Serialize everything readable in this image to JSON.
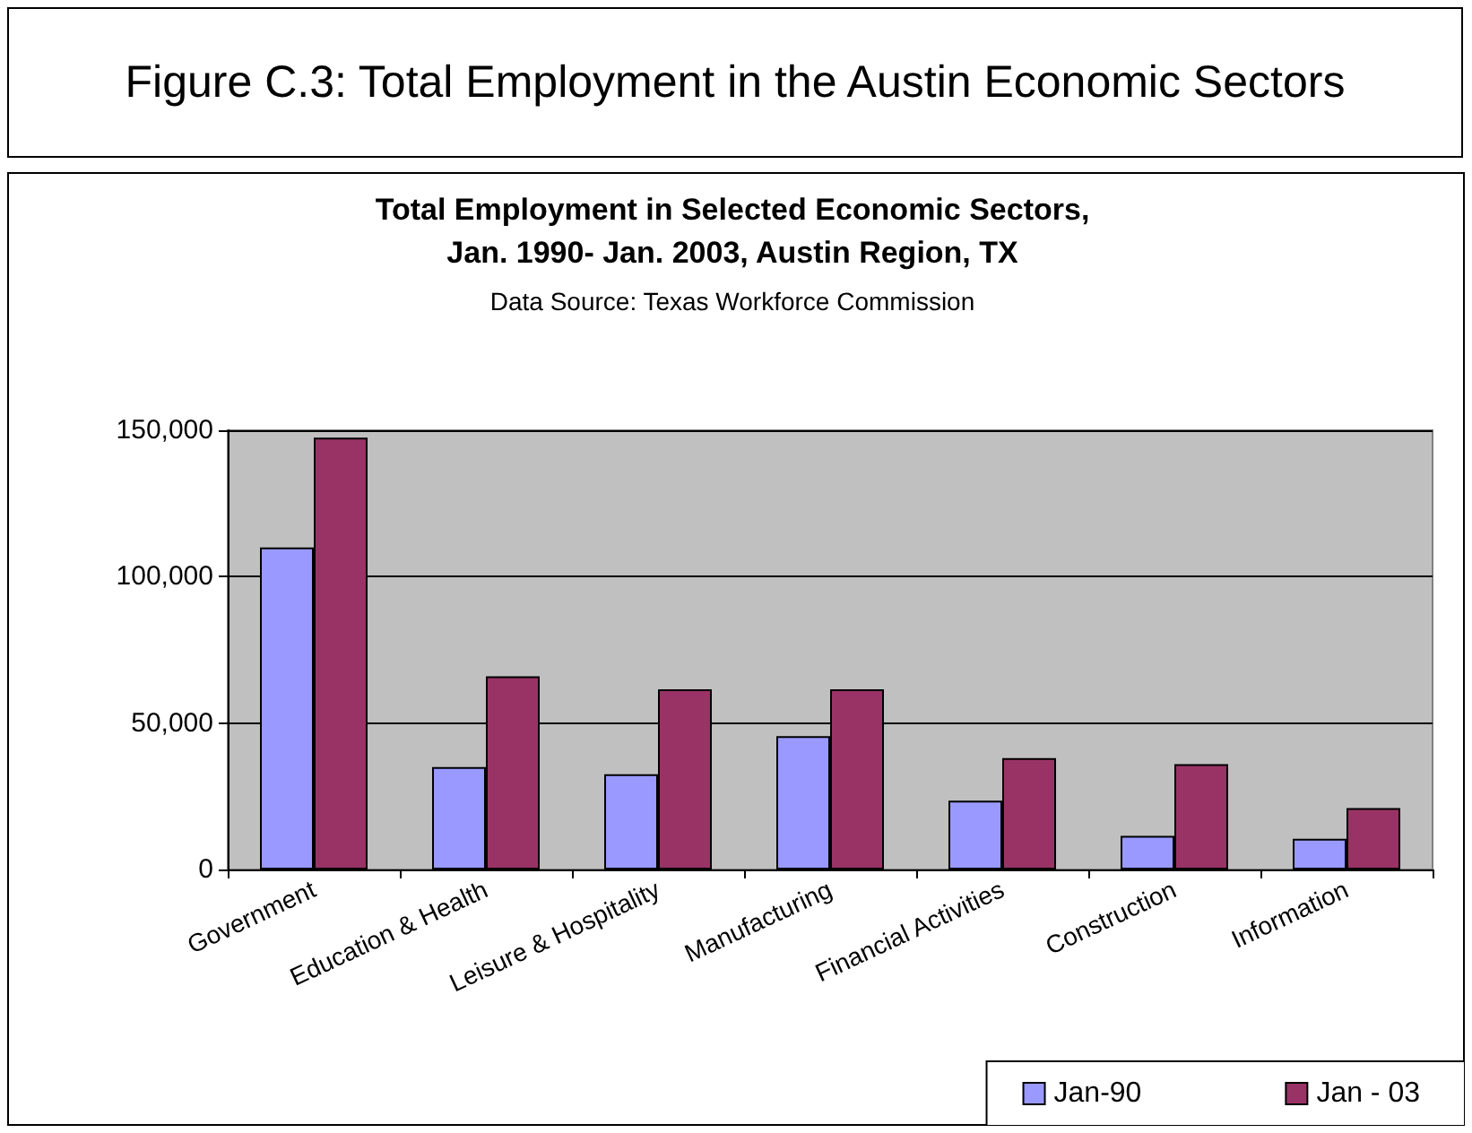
{
  "chart_data": {
    "type": "bar",
    "title": "Total Employment in Selected Economic Sectors,\nJan. 1990- Jan. 2003, Austin Region, TX",
    "subtitle": "Data Source: Texas Workforce Commission",
    "annotations": [
      "Figure C.3: Total Employment in the Austin Economic Sectors"
    ],
    "categories": [
      "Government",
      "Education & Health",
      "Leisure & Hospitality",
      "Manufacturing",
      "Financial Activities",
      "Construction",
      "Information"
    ],
    "series": [
      {
        "name": "Jan-90",
        "color": "#9999ff",
        "values": [
          110000,
          35000,
          32500,
          45500,
          23500,
          11500,
          10500
        ]
      },
      {
        "name": "Jan - 03",
        "color": "#993366",
        "values": [
          147500,
          66000,
          61500,
          61500,
          38000,
          36000,
          21000
        ]
      }
    ],
    "ylim": [
      0,
      150000
    ],
    "yticks": [
      0,
      {
        "value": 50000,
        "label": "50,000"
      },
      {
        "value": 100000,
        "label": "100,000"
      },
      {
        "value": 150000,
        "label": "150,000"
      }
    ],
    "grid": "y",
    "legend": "bottom right"
  }
}
